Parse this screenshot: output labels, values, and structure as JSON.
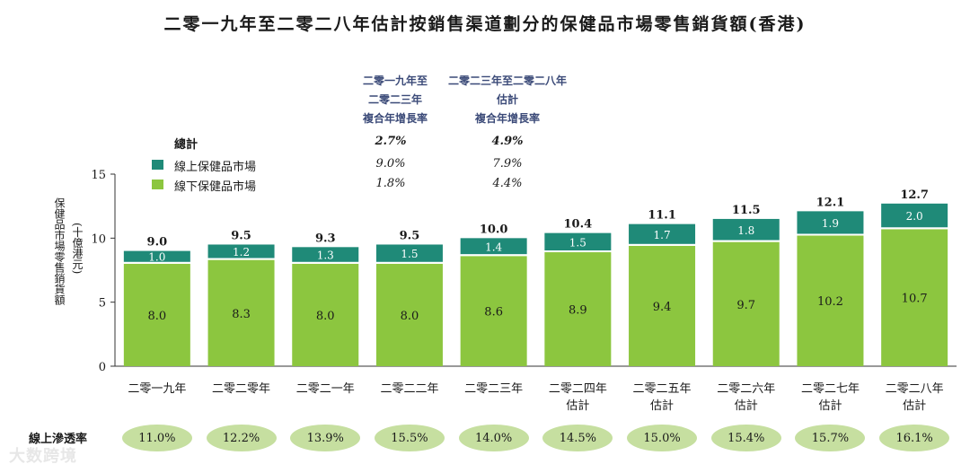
{
  "title": "二零一九年至二零二八年估計按銷售渠道劃分的保健品市場零售銷貨額(香港)",
  "cagr": {
    "head1": [
      "二零一九年至",
      "二零二三年",
      "複合年增長率"
    ],
    "head2": [
      "二零二三年至二零二八年",
      "估計",
      "複合年增長率"
    ],
    "rows": [
      {
        "label": "總計",
        "v1": "2.7%",
        "v2": "4.9%",
        "swatch": null
      },
      {
        "label": "線上保健品市場",
        "v1": "9.0%",
        "v2": "7.9%",
        "swatch": "#1f8a78"
      },
      {
        "label": "線下保健品市場",
        "v1": "1.8%",
        "v2": "4.4%",
        "swatch": "#8cc63f"
      }
    ]
  },
  "colors": {
    "online": "#1f8a78",
    "offline": "#8cc63f",
    "oval": "#c6dfa0"
  },
  "chart_data": {
    "type": "bar",
    "stacked": true,
    "ylabel": "保健品市場零售銷貨額",
    "ylabel_unit": "(十億港元)",
    "ylim": [
      0,
      15
    ],
    "yticks": [
      0,
      5,
      10,
      15
    ],
    "categories": [
      [
        "二零一九年"
      ],
      [
        "二零二零年"
      ],
      [
        "二零二一年"
      ],
      [
        "二零二二年"
      ],
      [
        "二零二三年"
      ],
      [
        "二零二四年",
        "估計"
      ],
      [
        "二零二五年",
        "估計"
      ],
      [
        "二零二六年",
        "估計"
      ],
      [
        "二零二七年",
        "估計"
      ],
      [
        "二零二八年",
        "估計"
      ]
    ],
    "series": [
      {
        "name": "線下保健品市場",
        "values": [
          8.0,
          8.3,
          8.0,
          8.0,
          8.6,
          8.9,
          9.4,
          9.7,
          10.2,
          10.7
        ]
      },
      {
        "name": "線上保健品市場",
        "values": [
          1.0,
          1.2,
          1.3,
          1.5,
          1.4,
          1.5,
          1.7,
          1.8,
          1.9,
          2.0
        ]
      }
    ],
    "totals": [
      9.0,
      9.5,
      9.3,
      9.5,
      10.0,
      10.4,
      11.1,
      11.5,
      12.1,
      12.7
    ],
    "offline_labels": [
      "8.0",
      "8.3",
      "8.0",
      "8.0",
      "8.6",
      "8.9",
      "9.4",
      "9.7",
      "10.2",
      "10.7"
    ],
    "online_labels": [
      "1.0",
      "1.2",
      "1.3",
      "1.5",
      "1.4",
      "1.5",
      "1.7",
      "1.8",
      "1.9",
      "2.0"
    ],
    "total_labels": [
      "9.0",
      "9.5",
      "9.3",
      "9.5",
      "10.0",
      "10.4",
      "11.1",
      "11.5",
      "12.1",
      "12.7"
    ],
    "penetration_label": "線上滲透率",
    "penetration": [
      "11.0%",
      "12.2%",
      "13.9%",
      "15.5%",
      "14.0%",
      "14.5%",
      "15.0%",
      "15.4%",
      "15.7%",
      "16.1%"
    ]
  },
  "watermark": "大数跨境"
}
